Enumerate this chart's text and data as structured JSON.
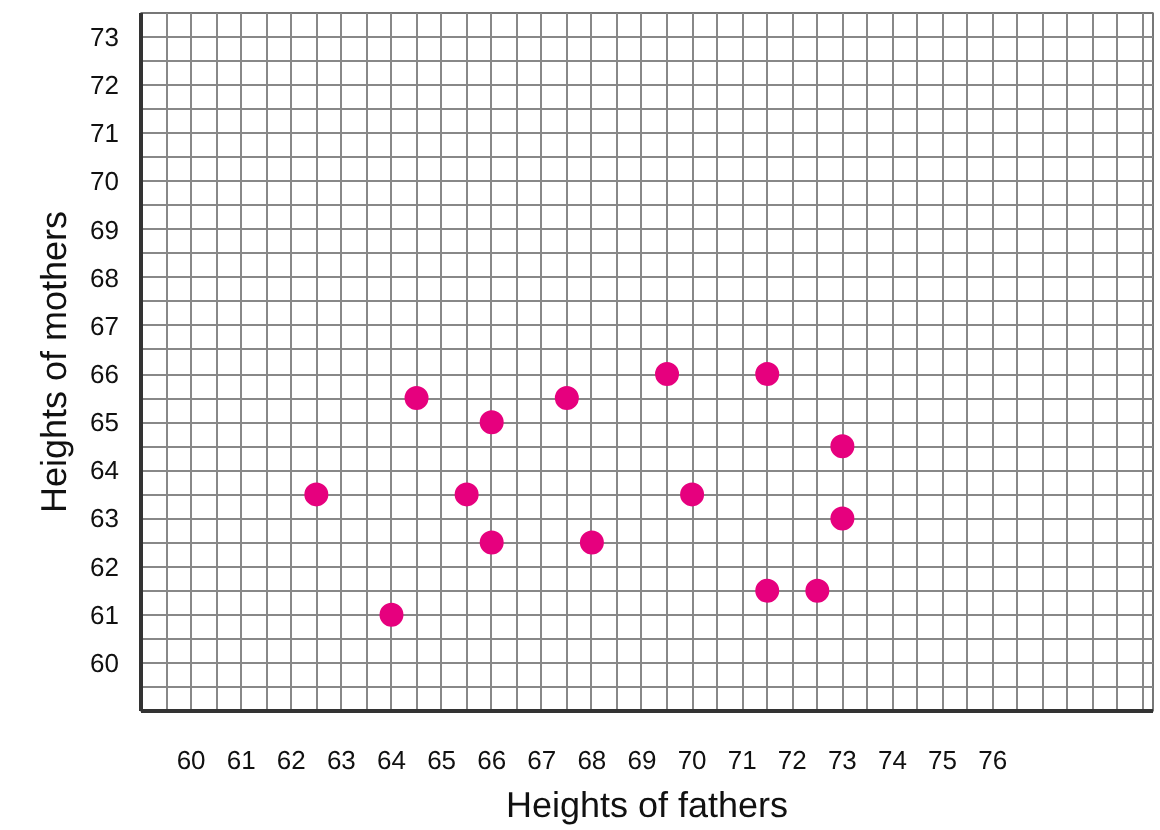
{
  "chart_data": {
    "type": "scatter",
    "xlabel": "Heights of fathers",
    "ylabel": "Heights of mothers",
    "x": [
      62.5,
      64,
      64.5,
      65.5,
      66,
      66,
      67.5,
      68,
      69.5,
      70,
      71.5,
      71.5,
      72.5,
      73,
      73
    ],
    "series": [
      {
        "color": "#e6007e",
        "values": [
          63.5,
          61,
          65.5,
          63.5,
          65,
          62.5,
          65.5,
          62.5,
          66,
          63.5,
          66,
          61.5,
          61.5,
          64.5,
          63
        ]
      }
    ],
    "xlim": [
      59,
      79.2
    ],
    "ylim": [
      59,
      73.5
    ],
    "xticks": [
      60,
      61,
      62,
      63,
      64,
      65,
      66,
      67,
      68,
      69,
      70,
      71,
      72,
      73,
      74,
      75,
      76
    ],
    "yticks": [
      60,
      61,
      62,
      63,
      64,
      65,
      66,
      67,
      68,
      69,
      70,
      71,
      72,
      73
    ],
    "grid": true,
    "marker": "circle"
  }
}
